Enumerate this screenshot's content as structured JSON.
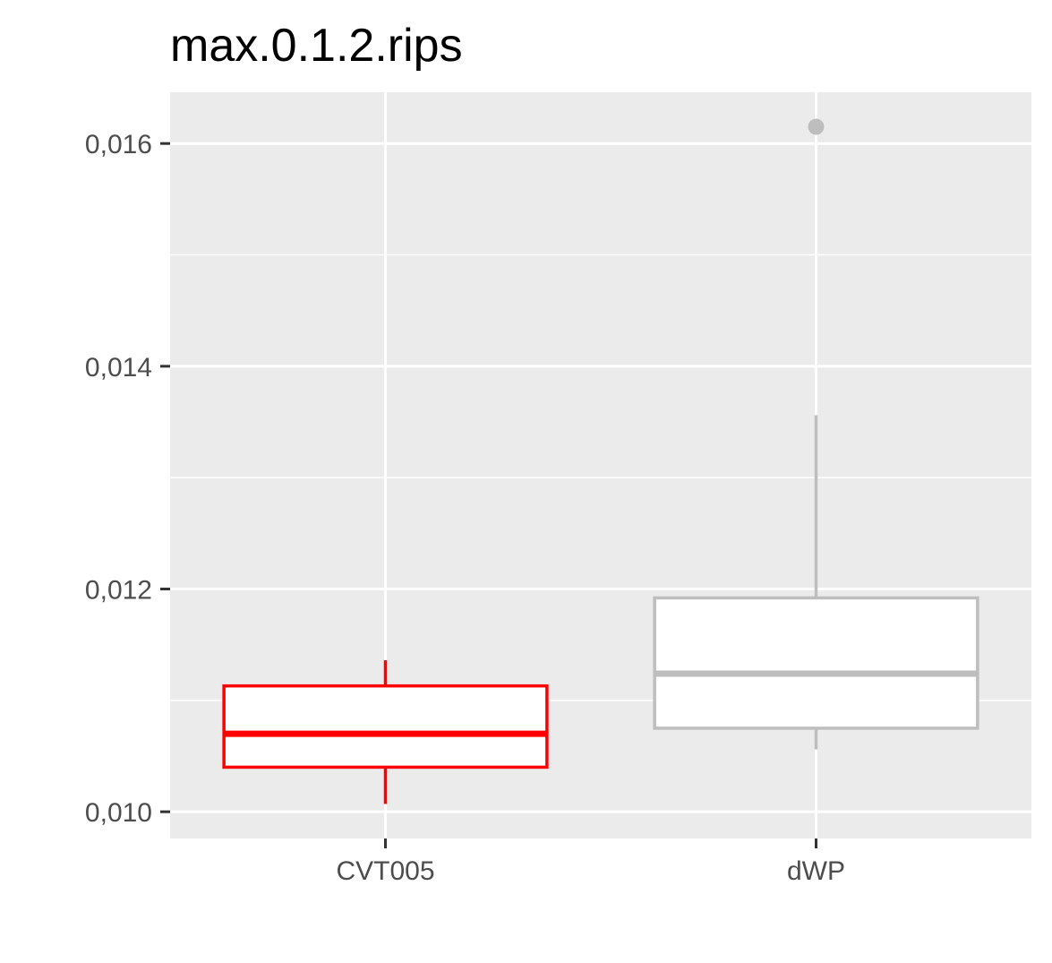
{
  "chart_data": {
    "type": "boxplot",
    "title": "max.0.1.2.rips",
    "xlabel": "",
    "ylabel": "",
    "ylim": [
      0.00976,
      0.01646
    ],
    "y_ticks": [
      0.01,
      0.012,
      0.014,
      0.016
    ],
    "y_tick_labels": [
      "0,010",
      "0,012",
      "0,014",
      "0,016"
    ],
    "grid": true,
    "legend": "none",
    "categories": [
      "CVT005",
      "dWP"
    ],
    "boxes": [
      {
        "category": "CVT005",
        "color": "#ff0000",
        "whisker_low": 0.01007,
        "q1": 0.0104,
        "median": 0.0107,
        "q3": 0.01113,
        "whisker_high": 0.01136,
        "outliers": []
      },
      {
        "category": "dWP",
        "color": "#bebebe",
        "whisker_low": 0.01056,
        "q1": 0.01075,
        "median": 0.01124,
        "q3": 0.01192,
        "whisker_high": 0.01356,
        "outliers": [
          0.01615
        ]
      }
    ],
    "colors": {
      "panel": "#ebebeb",
      "grid": "#ffffff",
      "tick": "#333333"
    }
  }
}
